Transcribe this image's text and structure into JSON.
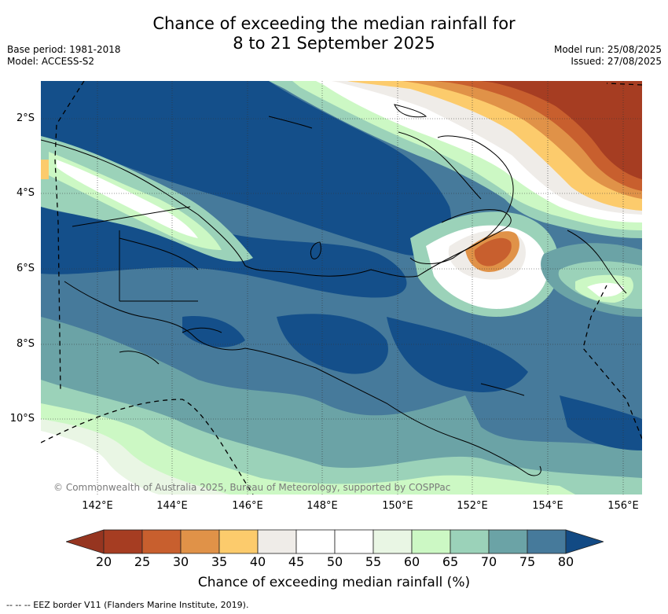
{
  "title_line1": "Chance of exceeding the median rainfall for",
  "title_line2": "8 to 21 September 2025",
  "base_period": "Base period: 1981-2018",
  "model": "Model: ACCESS-S2",
  "model_run": "Model run: 25/08/2025",
  "issued": "Issued: 27/08/2025",
  "copyright": "© Commonwealth of Australia 2025, Bureau of Meteorology, supported by COSPPac",
  "lat_labels": [
    "2°S",
    "4°S",
    "6°S",
    "8°S",
    "10°S"
  ],
  "lon_labels": [
    "142°E",
    "144°E",
    "146°E",
    "148°E",
    "150°E",
    "152°E",
    "154°E",
    "156°E"
  ],
  "colorbar": {
    "title": "Chance of exceeding median rainfall (%)",
    "ticks": [
      "20",
      "25",
      "30",
      "35",
      "40",
      "45",
      "50",
      "55",
      "60",
      "65",
      "70",
      "75",
      "80"
    ],
    "colors": [
      "#a63d22",
      "#c85f2e",
      "#e09248",
      "#fccb6c",
      "#efece8",
      "#ffffff",
      "#ffffff",
      "#e9f6e4",
      "#ccf8c4",
      "#9bd2b9",
      "#6ba3a6",
      "#467a9b",
      "#144f8a"
    ],
    "under_color": "#963520",
    "over_color": "#124a84"
  },
  "legend_footer": "-- -- -- EEZ border V11 (Flanders Marine Institute, 2019)."
}
